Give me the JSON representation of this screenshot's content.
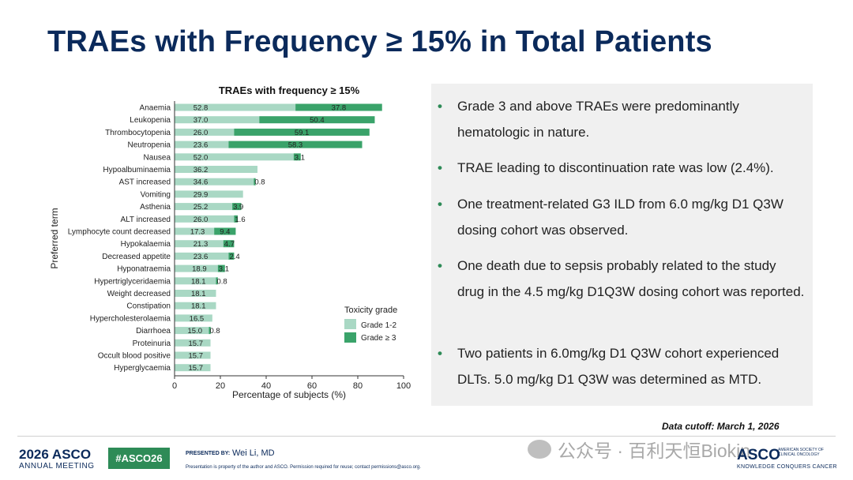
{
  "slide": {
    "title": "TRAEs with Frequency ≥ 15% in Total Patients"
  },
  "chart_data": {
    "type": "bar",
    "orientation": "horizontal",
    "stacked": true,
    "title": "TRAEs with frequency ≥ 15%",
    "xlabel": "Percentage of subjects (%)",
    "ylabel": "Preferred term",
    "xlim": [
      0,
      100
    ],
    "xticks": [
      "0",
      "20",
      "40",
      "60",
      "80",
      "100"
    ],
    "grid": false,
    "legend_title": "Toxicity grade",
    "legend_position": "bottom-right",
    "categories": [
      "Anaemia",
      "Leukopenia",
      "Thrombocytopenia",
      "Neutropenia",
      "Nausea",
      "Hypoalbuminaemia",
      "AST increased",
      "Vomiting",
      "Asthenia",
      "ALT increased",
      "Lymphocyte count decreased",
      "Hypokalaemia",
      "Decreased appetite",
      "Hyponatraemia",
      "Hypertriglyceridaemia",
      "Weight decreased",
      "Constipation",
      "Hypercholesterolaemia",
      "Diarrhoea",
      "Proteinuria",
      "Occult blood positive",
      "Hyperglycaemia"
    ],
    "series": [
      {
        "name": "Grade 1-2",
        "color": "#a9d8c4",
        "values": [
          52.8,
          37.0,
          26.0,
          23.6,
          52.0,
          36.2,
          34.6,
          29.9,
          25.2,
          26.0,
          17.3,
          21.3,
          23.6,
          18.9,
          18.1,
          18.1,
          18.1,
          16.5,
          15.0,
          15.7,
          15.7,
          15.7
        ],
        "labels": [
          "52.8",
          "37.0",
          "26.0",
          "23.6",
          "52.0",
          "36.2",
          "34.6",
          "29.9",
          "25.2",
          "26.0",
          "17.3",
          "21.3",
          "23.6",
          "18.9",
          "18.1",
          "18.1",
          "18.1",
          "16.5",
          "15.0",
          "15.7",
          "15.7",
          "15.7"
        ]
      },
      {
        "name": "Grade ≥ 3",
        "color": "#3aa36a",
        "values": [
          37.8,
          50.4,
          59.1,
          58.3,
          3.1,
          null,
          0.8,
          null,
          3.9,
          1.6,
          9.4,
          4.7,
          2.4,
          3.1,
          0.8,
          null,
          null,
          null,
          0.8,
          null,
          null,
          null
        ],
        "labels": [
          "37.8",
          "50.4",
          "59.1",
          "58.3",
          "3.1",
          "",
          "0.8",
          "",
          "3.9",
          "1.6",
          "9.4",
          "4.7",
          "2.4",
          "3.1",
          "0.8",
          "",
          "",
          "",
          "0.8",
          "",
          "",
          ""
        ]
      }
    ]
  },
  "bullets": [
    "Grade 3 and above TRAEs were predominantly hematologic in nature.",
    "TRAE leading to discontinuation rate was low (2.4%).",
    "One treatment-related G3 ILD from 6.0 mg/kg D1 Q3W dosing cohort was observed.",
    "One death due to sepsis probably related to the study drug in the 4.5 mg/kg D1Q3W dosing cohort was reported.",
    "Two patients in 6.0mg/kg D1 Q3W cohort experienced DLTs. 5.0 mg/kg D1 Q3W was determined as MTD."
  ],
  "bullet_symbol": "•",
  "bullet_color": "#2e8b57",
  "data_cutoff": "Data cutoff: March 1, 2026",
  "footer": {
    "year": "2026",
    "asco": "ASCO",
    "annual_meeting": "ANNUAL MEETING",
    "hashtag": "#ASCO26",
    "presented_by_label": "PRESENTED BY:",
    "presenter": "Wei Li, MD",
    "disclaimer": "Presentation is property of the author and ASCO. Permission required for reuse; contact permissions@asco.org.",
    "watermark": "公众号 · 百利天恒Biokin",
    "logo_text": "ASCO",
    "society": "AMERICAN SOCIETY OF CLINICAL ONCOLOGY",
    "tagline": "KNOWLEDGE CONQUERS CANCER"
  },
  "colors": {
    "title": "#0b2a5b",
    "panel_bg": "#f0f0f0",
    "brand_green": "#2e8b57"
  }
}
